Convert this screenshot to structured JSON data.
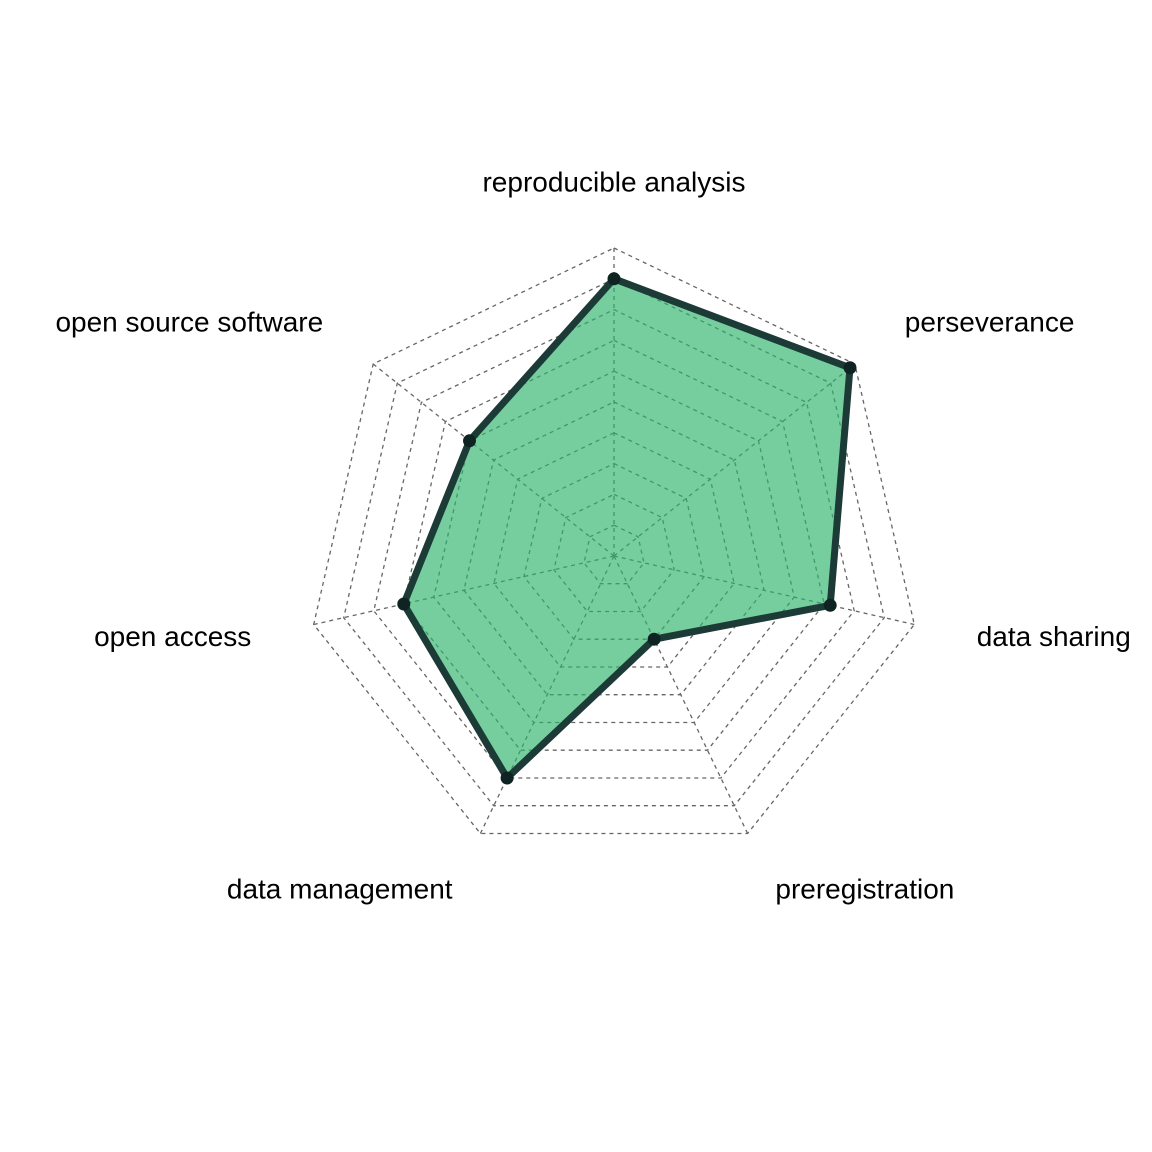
{
  "chart_data": {
    "type": "radar",
    "axes": [
      "reproducible analysis",
      "perseverance",
      "data sharing",
      "preregistration",
      "data management",
      "open access",
      "open source software"
    ],
    "values": [
      0.9,
      0.98,
      0.72,
      0.3,
      0.8,
      0.7,
      0.6
    ],
    "range": [
      0,
      1
    ],
    "grid_levels": 10,
    "colors": {
      "fill": "#2db36b",
      "line": "#1c3b37",
      "grid": "#666666"
    }
  }
}
